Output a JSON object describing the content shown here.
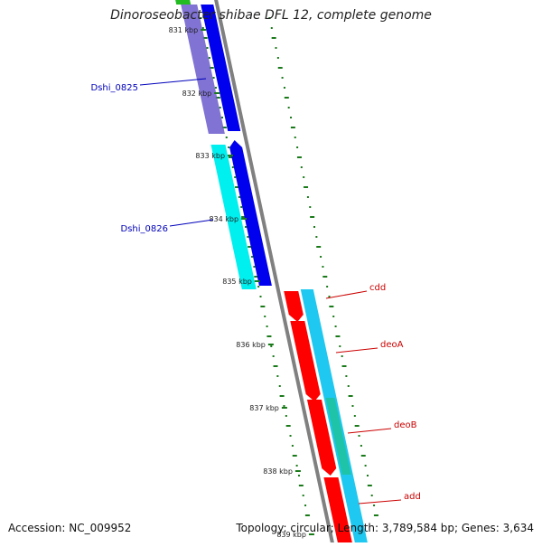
{
  "title": "Dinoroseobacter shibae DFL 12, complete genome",
  "accession_label": "Accession: NC_009952",
  "summary_label": "Topology: circular; Length: 3,789,584 bp; Genes: 3,634",
  "ticks": [
    "831 kbp",
    "832 kbp",
    "833 kbp",
    "834 kbp",
    "835 kbp",
    "836 kbp",
    "837 kbp",
    "838 kbp",
    "839 kbp"
  ],
  "colors": {
    "backbone": "#808080",
    "tick": "#1a7a1a",
    "gene_blue": "#0000ee",
    "gene_purple": "#6a5acd",
    "gene_cyan": "#00f0f0",
    "gene_red": "#ff0000",
    "gene_skyblue": "#1ec8f0",
    "gene_green": "#22bb22",
    "left_label": "#0000bb",
    "right_label": "#cc0000"
  },
  "genes_left": [
    {
      "name": "Dshi_0825"
    },
    {
      "name": "Dshi_0826"
    }
  ],
  "genes_right": [
    {
      "name": "cdd"
    },
    {
      "name": "deoA"
    },
    {
      "name": "deoB"
    },
    {
      "name": "add"
    }
  ]
}
